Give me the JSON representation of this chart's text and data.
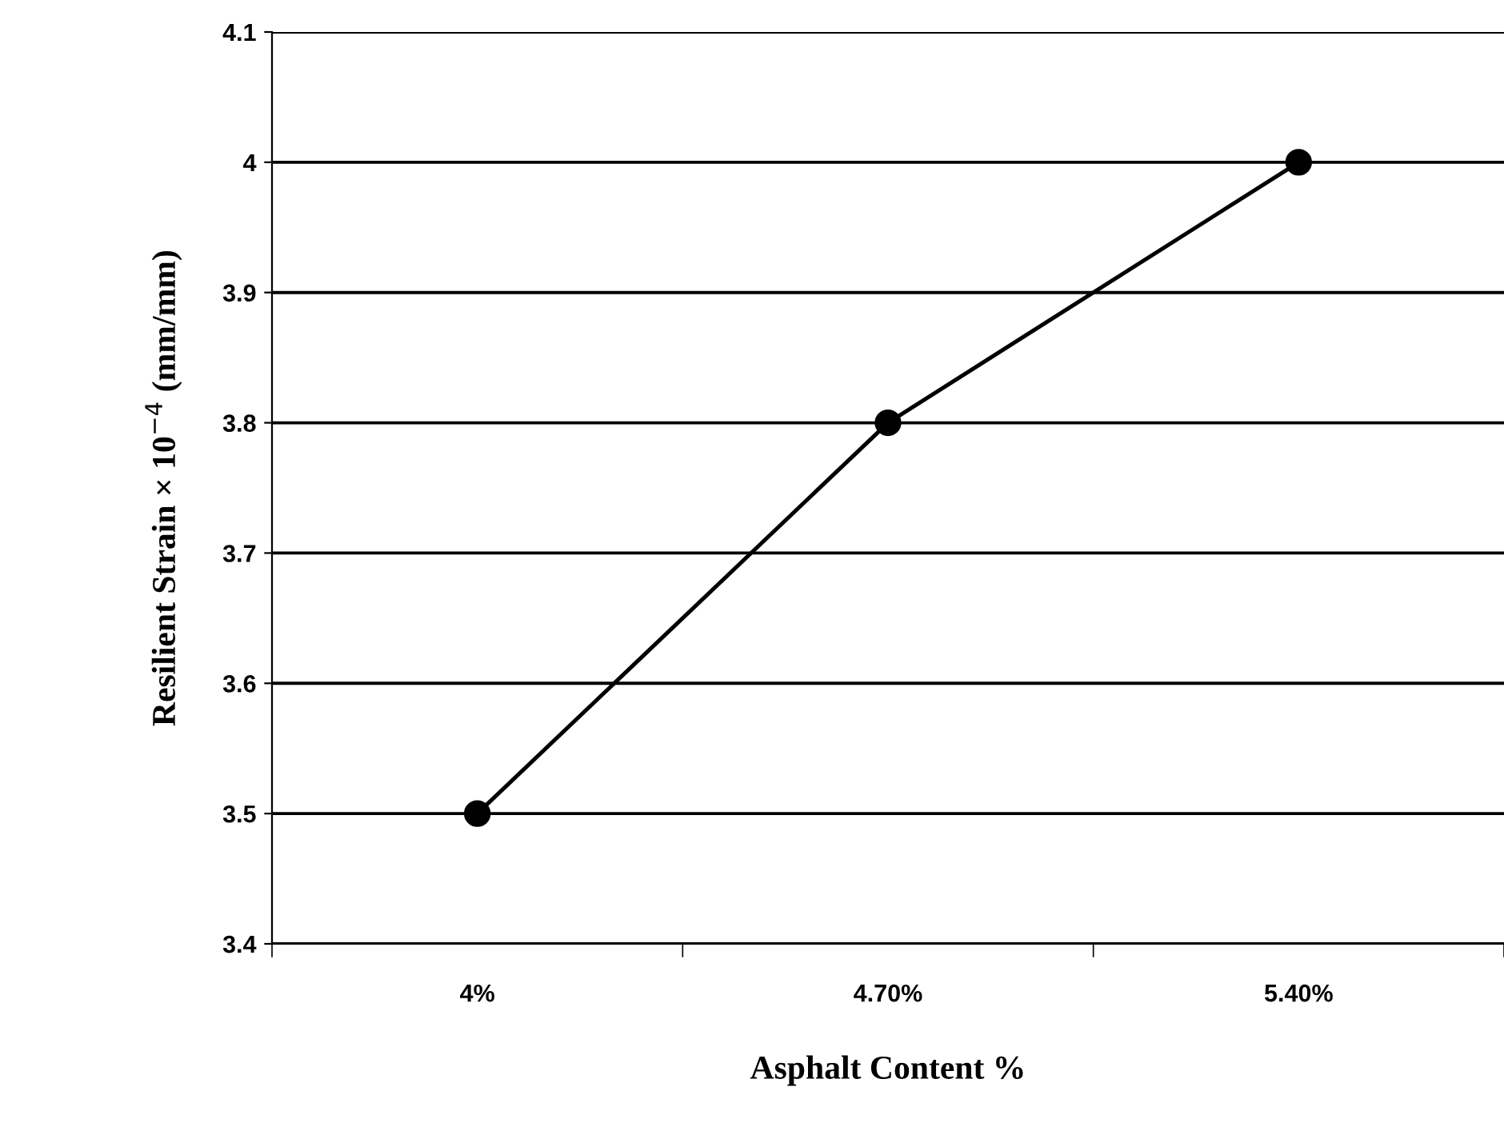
{
  "chart_data": {
    "type": "line",
    "xlabel": "Asphalt Content %",
    "ylabel": "Resilient Strain × 10$^{−4}$ (mm/mm)",
    "categories": [
      "4%",
      "4.70%",
      "5.40%"
    ],
    "series": [
      {
        "color": "#000000",
        "values": [
          3.5,
          3.8,
          4.0
        ]
      }
    ],
    "ylim": [
      3.4,
      4.1
    ],
    "yticks": [
      3.4,
      3.5,
      3.6,
      3.7,
      3.8,
      3.9,
      4,
      4.1
    ],
    "grid": "y",
    "marker": "circle",
    "line_style": "solid"
  }
}
